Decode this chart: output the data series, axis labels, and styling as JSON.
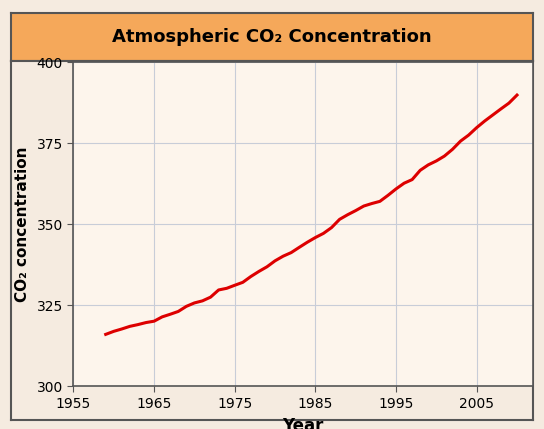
{
  "title": "Atmospheric CO₂ Concentration",
  "xlabel": "Year",
  "ylabel": "CO₂ concentration",
  "xlim": [
    1955,
    2012
  ],
  "ylim": [
    300,
    400
  ],
  "xticks": [
    1955,
    1965,
    1975,
    1985,
    1995,
    2005
  ],
  "yticks": [
    300,
    325,
    350,
    375,
    400
  ],
  "line_color": "#dd0000",
  "line_width": 2.2,
  "background_outer": "#f5ebe0",
  "background_plot": "#fdf5ec",
  "title_bg_color": "#f5a85a",
  "grid_color": "#c8cdd8",
  "border_color": "#555555",
  "outer_border_color": "#888888",
  "years": [
    1959,
    1960,
    1961,
    1962,
    1963,
    1964,
    1965,
    1966,
    1967,
    1968,
    1969,
    1970,
    1971,
    1972,
    1973,
    1974,
    1975,
    1976,
    1977,
    1978,
    1979,
    1980,
    1981,
    1982,
    1983,
    1984,
    1985,
    1986,
    1987,
    1988,
    1989,
    1990,
    1991,
    1992,
    1993,
    1994,
    1995,
    1996,
    1997,
    1998,
    1999,
    2000,
    2001,
    2002,
    2003,
    2004,
    2005,
    2006,
    2007,
    2008,
    2009,
    2010
  ],
  "co2": [
    315.97,
    316.91,
    317.64,
    318.45,
    318.99,
    319.62,
    320.04,
    321.37,
    322.18,
    323.05,
    324.62,
    325.68,
    326.32,
    327.46,
    329.68,
    330.19,
    331.13,
    332.04,
    333.84,
    335.41,
    336.84,
    338.68,
    340.11,
    341.22,
    342.84,
    344.42,
    345.87,
    347.15,
    348.93,
    351.48,
    352.91,
    354.19,
    355.59,
    356.37,
    357.04,
    358.89,
    360.88,
    362.64,
    363.76,
    366.63,
    368.31,
    369.52,
    371.02,
    373.1,
    375.64,
    377.49,
    379.8,
    381.85,
    383.71,
    385.57,
    387.37,
    389.85
  ]
}
